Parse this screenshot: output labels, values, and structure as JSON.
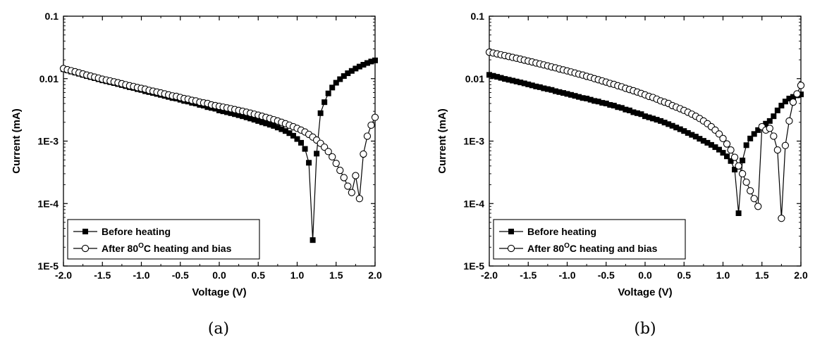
{
  "chart_data": [
    {
      "panel_label": "(a)",
      "type": "line",
      "xlabel": "Voltage (V)",
      "ylabel": "Current (mA)",
      "xlim": [
        -2.0,
        2.0
      ],
      "ylim": [
        1e-05,
        0.1
      ],
      "y_scale": "log",
      "x_ticks": [
        "-2.0",
        "-1.5",
        "-1.0",
        "-0.5",
        "0.0",
        "0.5",
        "1.0",
        "1.5",
        "2.0"
      ],
      "y_ticks": [
        "1E-5",
        "1E-4",
        "1E-3",
        "0.01",
        "0.1"
      ],
      "legend_position": "bottom-left",
      "series": [
        {
          "name": "Before heating",
          "marker": "filled-square",
          "x": [
            -2.0,
            -1.95,
            -1.9,
            -1.85,
            -1.8,
            -1.75,
            -1.7,
            -1.65,
            -1.6,
            -1.55,
            -1.5,
            -1.45,
            -1.4,
            -1.35,
            -1.3,
            -1.25,
            -1.2,
            -1.15,
            -1.1,
            -1.05,
            -1.0,
            -0.95,
            -0.9,
            -0.85,
            -0.8,
            -0.75,
            -0.7,
            -0.65,
            -0.6,
            -0.55,
            -0.5,
            -0.45,
            -0.4,
            -0.35,
            -0.3,
            -0.25,
            -0.2,
            -0.15,
            -0.1,
            -0.05,
            0.0,
            0.05,
            0.1,
            0.15,
            0.2,
            0.25,
            0.3,
            0.35,
            0.4,
            0.45,
            0.5,
            0.55,
            0.6,
            0.65,
            0.7,
            0.75,
            0.8,
            0.85,
            0.9,
            0.95,
            1.0,
            1.05,
            1.1,
            1.15,
            1.2,
            1.25,
            1.3,
            1.35,
            1.4,
            1.45,
            1.5,
            1.55,
            1.6,
            1.65,
            1.7,
            1.75,
            1.8,
            1.85,
            1.9,
            1.95,
            2.0
          ],
          "y": [
            0.0142,
            0.0136,
            0.013,
            0.0125,
            0.012,
            0.0115,
            0.011,
            0.0106,
            0.0102,
            0.0098,
            0.0094,
            0.0091,
            0.0088,
            0.0085,
            0.0082,
            0.0079,
            0.0076,
            0.0073,
            0.0071,
            0.0068,
            0.0066,
            0.0063,
            0.0061,
            0.0059,
            0.0057,
            0.0055,
            0.0053,
            0.0051,
            0.0049,
            0.0048,
            0.0046,
            0.0044,
            0.0043,
            0.0041,
            0.004,
            0.0038,
            0.0037,
            0.0035,
            0.0034,
            0.0033,
            0.0031,
            0.003,
            0.0029,
            0.0028,
            0.0027,
            0.0026,
            0.0025,
            0.0024,
            0.0023,
            0.0022,
            0.0021,
            0.002,
            0.00192,
            0.00183,
            0.00175,
            0.00165,
            0.00155,
            0.00145,
            0.00134,
            0.00122,
            0.00108,
            0.00094,
            0.00075,
            0.00045,
            2.6e-05,
            0.00063,
            0.0028,
            0.0042,
            0.0058,
            0.0072,
            0.0086,
            0.0098,
            0.011,
            0.0122,
            0.0133,
            0.0145,
            0.0156,
            0.0167,
            0.0178,
            0.0188,
            0.0196
          ],
          "x_plot": [
            -2.0,
            -1.95,
            -1.9,
            -1.85,
            -1.8,
            -1.75,
            -1.7,
            -1.65,
            -1.6,
            -1.55,
            -1.5,
            -1.45,
            -1.4,
            -1.35,
            -1.3,
            -1.25,
            -1.2,
            -1.15,
            -1.1,
            -1.05,
            -1.0,
            -0.95,
            -0.9,
            -0.85,
            -0.8,
            -0.75,
            -0.7,
            -0.65,
            -0.6,
            -0.55,
            -0.5,
            -0.45,
            -0.4,
            -0.35,
            -0.3,
            -0.25,
            -0.2,
            -0.15,
            -0.1,
            -0.05,
            0.0,
            0.05,
            0.1,
            0.15,
            0.2,
            0.25,
            0.3,
            0.35,
            0.4,
            0.45,
            0.5,
            0.55,
            0.6,
            0.65,
            0.7,
            0.75,
            0.8,
            0.85,
            0.9,
            0.95,
            1.0,
            1.05,
            1.1,
            1.15,
            1.2,
            1.25,
            1.3,
            1.35,
            1.4,
            1.45,
            1.5,
            1.55,
            1.6,
            1.65,
            1.7,
            1.75,
            1.8,
            1.85,
            1.9,
            1.95,
            2.0
          ]
        },
        {
          "name": "After 80°C heating and bias",
          "marker": "open-circle",
          "x": [
            -2.0,
            -1.95,
            -1.9,
            -1.85,
            -1.8,
            -1.75,
            -1.7,
            -1.65,
            -1.6,
            -1.55,
            -1.5,
            -1.45,
            -1.4,
            -1.35,
            -1.3,
            -1.25,
            -1.2,
            -1.15,
            -1.1,
            -1.05,
            -1.0,
            -0.95,
            -0.9,
            -0.85,
            -0.8,
            -0.75,
            -0.7,
            -0.65,
            -0.6,
            -0.55,
            -0.5,
            -0.45,
            -0.4,
            -0.35,
            -0.3,
            -0.25,
            -0.2,
            -0.15,
            -0.1,
            -0.05,
            0.0,
            0.05,
            0.1,
            0.15,
            0.2,
            0.25,
            0.3,
            0.35,
            0.4,
            0.45,
            0.5,
            0.55,
            0.6,
            0.65,
            0.7,
            0.75,
            0.8,
            0.85,
            0.9,
            0.95,
            1.0,
            1.05,
            1.1,
            1.15,
            1.2,
            1.25,
            1.3,
            1.35,
            1.4,
            1.45,
            1.5,
            1.55,
            1.6,
            1.65,
            1.7,
            1.75,
            1.8,
            1.85,
            1.9,
            1.95,
            2.0
          ],
          "y": [
            0.0145,
            0.0139,
            0.0134,
            0.0129,
            0.0124,
            0.0119,
            0.0114,
            0.011,
            0.0106,
            0.0102,
            0.0098,
            0.0095,
            0.0092,
            0.0089,
            0.0086,
            0.0083,
            0.008,
            0.0077,
            0.0075,
            0.0072,
            0.007,
            0.0068,
            0.0065,
            0.0063,
            0.0061,
            0.0059,
            0.0057,
            0.0055,
            0.0053,
            0.0052,
            0.005,
            0.0048,
            0.0047,
            0.0045,
            0.0044,
            0.0042,
            0.0041,
            0.004,
            0.0038,
            0.0037,
            0.0036,
            0.0035,
            0.0034,
            0.0033,
            0.0032,
            0.0031,
            0.003,
            0.0029,
            0.0028,
            0.0027,
            0.0026,
            0.0025,
            0.0024,
            0.0023,
            0.0022,
            0.0021,
            0.002,
            0.0019,
            0.0018,
            0.0017,
            0.0016,
            0.0015,
            0.0014,
            0.00128,
            0.00116,
            0.00104,
            0.00092,
            0.0008,
            0.00068,
            0.00056,
            0.00044,
            0.00034,
            0.00026,
            0.00019,
            0.00015,
            0.00028,
            0.00012,
            0.00062,
            0.0012,
            0.0018,
            0.0024
          ]
        }
      ]
    },
    {
      "panel_label": "(b)",
      "type": "line",
      "xlabel": "Voltage (V)",
      "ylabel": "Current (mA)",
      "xlim": [
        -2.0,
        2.0
      ],
      "ylim": [
        1e-05,
        0.1
      ],
      "y_scale": "log",
      "x_ticks": [
        "-2.0",
        "-1.5",
        "-1.0",
        "-0.5",
        "0.0",
        "0.5",
        "1.0",
        "1.5",
        "2.0"
      ],
      "y_ticks": [
        "1E-5",
        "1E-4",
        "1E-3",
        "0.01",
        "0.1"
      ],
      "legend_position": "bottom-left",
      "series": [
        {
          "name": "Before heating",
          "marker": "filled-square",
          "x": [
            -2.0,
            -1.95,
            -1.9,
            -1.85,
            -1.8,
            -1.75,
            -1.7,
            -1.65,
            -1.6,
            -1.55,
            -1.5,
            -1.45,
            -1.4,
            -1.35,
            -1.3,
            -1.25,
            -1.2,
            -1.15,
            -1.1,
            -1.05,
            -1.0,
            -0.95,
            -0.9,
            -0.85,
            -0.8,
            -0.75,
            -0.7,
            -0.65,
            -0.6,
            -0.55,
            -0.5,
            -0.45,
            -0.4,
            -0.35,
            -0.3,
            -0.25,
            -0.2,
            -0.15,
            -0.1,
            -0.05,
            0.0,
            0.05,
            0.1,
            0.15,
            0.2,
            0.25,
            0.3,
            0.35,
            0.4,
            0.45,
            0.5,
            0.55,
            0.6,
            0.65,
            0.7,
            0.75,
            0.8,
            0.85,
            0.9,
            0.95,
            1.0,
            1.05,
            1.1,
            1.15,
            1.2,
            1.25,
            1.3,
            1.35,
            1.4,
            1.45,
            1.5,
            1.55,
            1.6,
            1.65,
            1.7,
            1.75,
            1.8,
            1.85,
            1.9,
            1.95,
            2.0
          ],
          "y": [
            0.0115,
            0.0111,
            0.0107,
            0.0103,
            0.0099,
            0.0096,
            0.0093,
            0.009,
            0.0087,
            0.0084,
            0.0081,
            0.0078,
            0.0075,
            0.0073,
            0.007,
            0.0068,
            0.0066,
            0.0063,
            0.0061,
            0.0059,
            0.0057,
            0.0055,
            0.0053,
            0.0051,
            0.0049,
            0.0048,
            0.0046,
            0.0044,
            0.0043,
            0.0041,
            0.004,
            0.0038,
            0.0037,
            0.0035,
            0.0034,
            0.0032,
            0.0031,
            0.0029,
            0.0028,
            0.0027,
            0.0025,
            0.0024,
            0.0023,
            0.0022,
            0.0021,
            0.00198,
            0.00187,
            0.00176,
            0.00165,
            0.00155,
            0.00145,
            0.00135,
            0.00126,
            0.00118,
            0.00109,
            0.00101,
            0.00094,
            0.00087,
            0.0008,
            0.00073,
            0.00065,
            0.00057,
            0.00048,
            0.00035,
            7e-05,
            0.00049,
            0.00086,
            0.0011,
            0.0013,
            0.0015,
            0.0017,
            0.0019,
            0.0021,
            0.0025,
            0.0031,
            0.0037,
            0.0043,
            0.0048,
            0.0051,
            0.0054,
            0.0056
          ]
        },
        {
          "name": "After 80°C heating and bias",
          "marker": "open-circle",
          "x": [
            -2.0,
            -1.95,
            -1.9,
            -1.85,
            -1.8,
            -1.75,
            -1.7,
            -1.65,
            -1.6,
            -1.55,
            -1.5,
            -1.45,
            -1.4,
            -1.35,
            -1.3,
            -1.25,
            -1.2,
            -1.15,
            -1.1,
            -1.05,
            -1.0,
            -0.95,
            -0.9,
            -0.85,
            -0.8,
            -0.75,
            -0.7,
            -0.65,
            -0.6,
            -0.55,
            -0.5,
            -0.45,
            -0.4,
            -0.35,
            -0.3,
            -0.25,
            -0.2,
            -0.15,
            -0.1,
            -0.05,
            0.0,
            0.05,
            0.1,
            0.15,
            0.2,
            0.25,
            0.3,
            0.35,
            0.4,
            0.45,
            0.5,
            0.55,
            0.6,
            0.65,
            0.7,
            0.75,
            0.8,
            0.85,
            0.9,
            0.95,
            1.0,
            1.05,
            1.1,
            1.15,
            1.2,
            1.25,
            1.3,
            1.35,
            1.4,
            1.45,
            1.5,
            1.55,
            1.6,
            1.65,
            1.7,
            1.75,
            1.8,
            1.85,
            1.9,
            1.95,
            2.0
          ],
          "y": [
            0.0265,
            0.0257,
            0.0249,
            0.0241,
            0.0234,
            0.0226,
            0.0219,
            0.0212,
            0.0205,
            0.0198,
            0.0191,
            0.0185,
            0.0178,
            0.0172,
            0.0166,
            0.016,
            0.0154,
            0.0149,
            0.0143,
            0.0138,
            0.0133,
            0.0128,
            0.0123,
            0.0118,
            0.0114,
            0.0109,
            0.0105,
            0.01,
            0.0096,
            0.0092,
            0.0088,
            0.0084,
            0.0081,
            0.0077,
            0.0074,
            0.007,
            0.0067,
            0.0064,
            0.0061,
            0.0058,
            0.0055,
            0.0052,
            0.005,
            0.0047,
            0.0044,
            0.0042,
            0.004,
            0.0037,
            0.0035,
            0.0033,
            0.0031,
            0.0029,
            0.0027,
            0.0025,
            0.0023,
            0.0021,
            0.0019,
            0.0017,
            0.0015,
            0.0013,
            0.0011,
            0.0009,
            0.00072,
            0.00055,
            0.0004,
            0.0003,
            0.00022,
            0.00016,
            0.00012,
            9e-05,
            0.0017,
            0.0015,
            0.0016,
            0.0012,
            0.00072,
            5.8e-05,
            0.00085,
            0.0021,
            0.0042,
            0.0057,
            0.0078
          ]
        }
      ]
    }
  ]
}
